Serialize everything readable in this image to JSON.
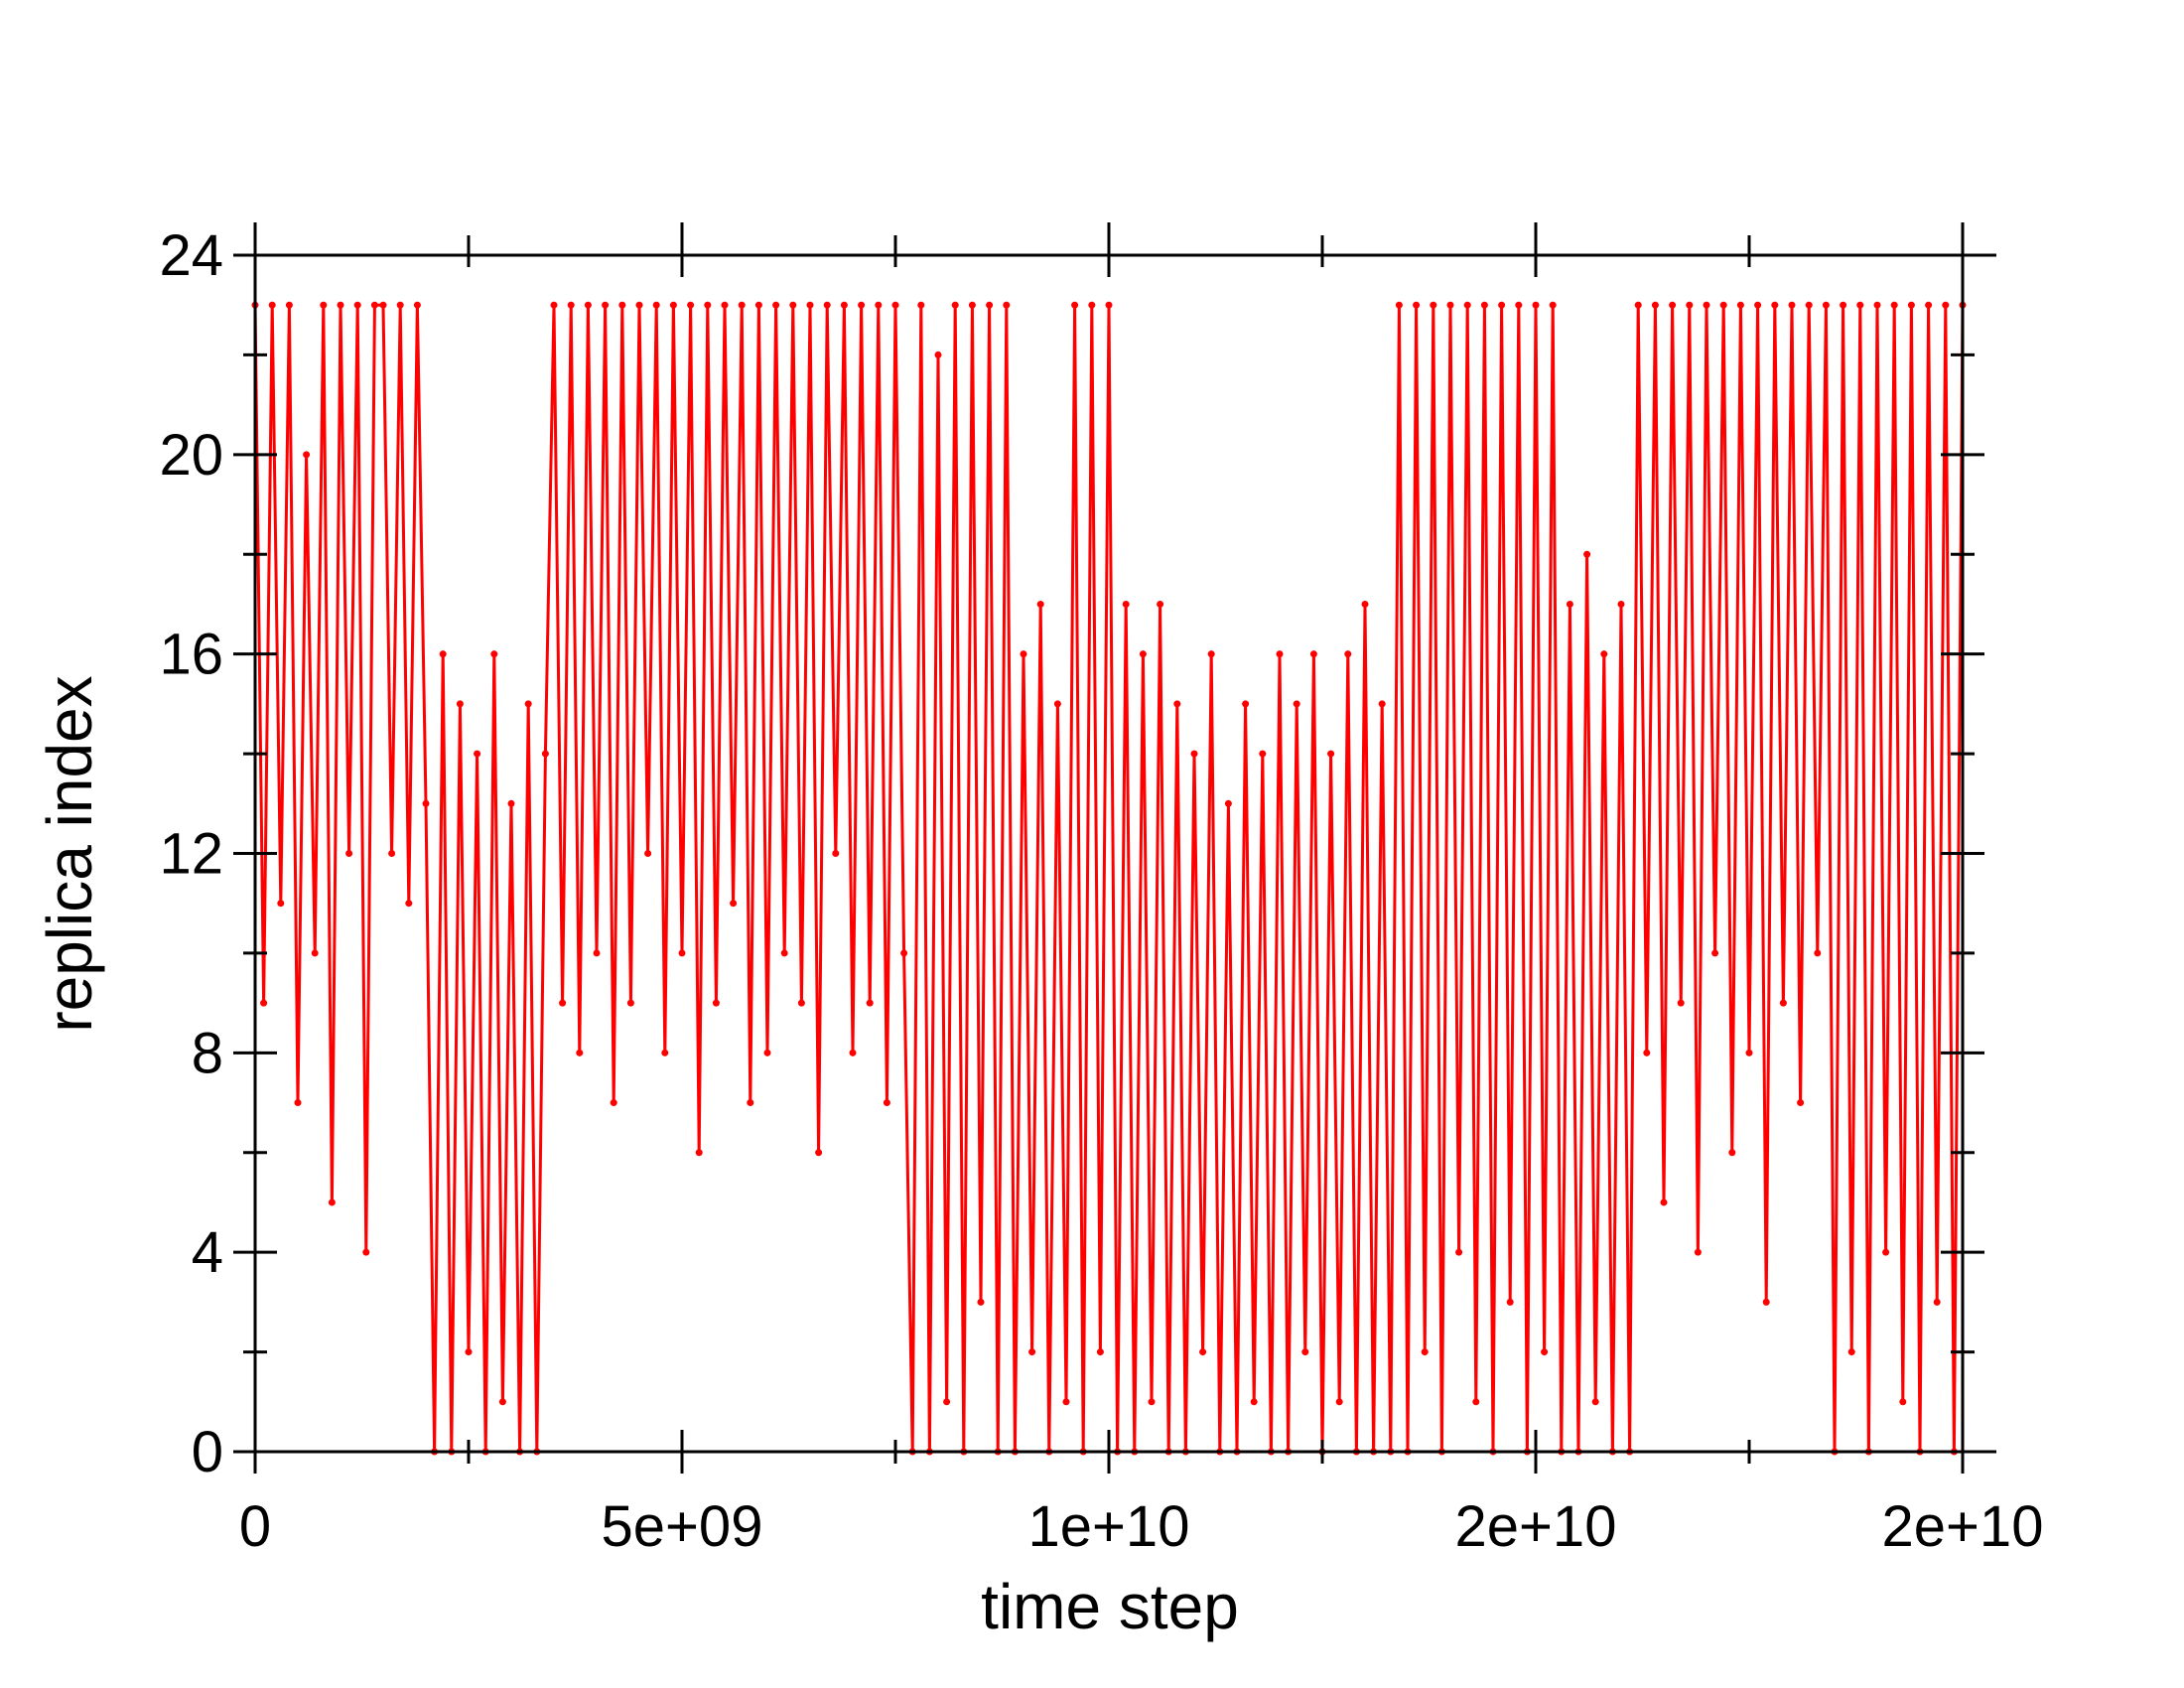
{
  "chart_data": {
    "type": "line",
    "xlabel": "time step",
    "ylabel": "replica index",
    "xlim": [
      0,
      20000000000
    ],
    "ylim": [
      0,
      24
    ],
    "xticks": [
      0,
      {
        "value": 5000000000,
        "label": "5e+09"
      },
      {
        "value": 10000000000,
        "label": "1e+10"
      },
      {
        "value": 15000000000,
        "label": "2e+10"
      },
      {
        "value": 20000000000,
        "label": "2e+10"
      }
    ],
    "yticks": [
      0,
      4,
      8,
      12,
      16,
      20,
      24
    ],
    "series": [
      {
        "color": "#ff0000",
        "x": [
          0,
          100000000.0,
          200000000.0,
          300000000.0,
          400000000.0,
          500000000.0,
          600000000.0,
          700000000.0,
          800000000.0,
          900000000.0,
          1000000000.0,
          1100000000.0,
          1200000000.0,
          1300000000.0,
          1400000000.0,
          1500000000.0,
          1600000000.0,
          1700000000.0,
          1800000000.0,
          1900000000.0,
          2000000000.0,
          2100000000.0,
          2200000000.0,
          2300000000.0,
          2400000000.0,
          2500000000.0,
          2600000000.0,
          2700000000.0,
          2800000000.0,
          2900000000.0,
          3000000000.0,
          3100000000.0,
          3200000000.0,
          3300000000.0,
          3400000000.0,
          3500000000.0,
          3600000000.0,
          3700000000.0,
          3800000000.0,
          3900000000.0,
          4000000000.0,
          4100000000.0,
          4200000000.0,
          4300000000.0,
          4400000000.0,
          4500000000.0,
          4600000000.0,
          4700000000.0,
          4800000000.0,
          4900000000.0,
          5000000000.0,
          5100000000.0,
          5200000000.0,
          5300000000.0,
          5400000000.0,
          5500000000.0,
          5600000000.0,
          5700000000.0,
          5800000000.0,
          5900000000.0,
          6000000000.0,
          6100000000.0,
          6200000000.0,
          6300000000.0,
          6400000000.0,
          6500000000.0,
          6600000000.0,
          6700000000.0,
          6800000000.0,
          6900000000.0,
          7000000000.0,
          7100000000.0,
          7200000000.0,
          7300000000.0,
          7400000000.0,
          7500000000.0,
          7600000000.0,
          7700000000.0,
          7800000000.0,
          7900000000.0,
          8000000000.0,
          8100000000.0,
          8200000000.0,
          8300000000.0,
          8400000000.0,
          8500000000.0,
          8600000000.0,
          8700000000.0,
          8800000000.0,
          8900000000.0,
          9000000000.0,
          9100000000.0,
          9200000000.0,
          9300000000.0,
          9400000000.0,
          9500000000.0,
          9600000000.0,
          9700000000.0,
          9800000000.0,
          9900000000.0,
          10000000000.0,
          10100000000.0,
          10200000000.0,
          10300000000.0,
          10400000000.0,
          10500000000.0,
          10600000000.0,
          10700000000.0,
          10800000000.0,
          10900000000.0,
          11000000000.0,
          11100000000.0,
          11200000000.0,
          11300000000.0,
          11400000000.0,
          11500000000.0,
          11600000000.0,
          11700000000.0,
          11800000000.0,
          11900000000.0,
          12000000000.0,
          12100000000.0,
          12200000000.0,
          12300000000.0,
          12400000000.0,
          12500000000.0,
          12600000000.0,
          12700000000.0,
          12800000000.0,
          12900000000.0,
          13000000000.0,
          13100000000.0,
          13200000000.0,
          13300000000.0,
          13400000000.0,
          13500000000.0,
          13600000000.0,
          13700000000.0,
          13800000000.0,
          13900000000.0,
          14000000000.0,
          14100000000.0,
          14200000000.0,
          14300000000.0,
          14400000000.0,
          14500000000.0,
          14600000000.0,
          14700000000.0,
          14800000000.0,
          14900000000.0,
          15000000000.0,
          15100000000.0,
          15200000000.0,
          15300000000.0,
          15400000000.0,
          15500000000.0,
          15600000000.0,
          15700000000.0,
          15800000000.0,
          15900000000.0,
          16000000000.0,
          16100000000.0,
          16200000000.0,
          16300000000.0,
          16400000000.0,
          16500000000.0,
          16600000000.0,
          16700000000.0,
          16800000000.0,
          16900000000.0,
          17000000000.0,
          17100000000.0,
          17200000000.0,
          17300000000.0,
          17400000000.0,
          17500000000.0,
          17600000000.0,
          17700000000.0,
          17800000000.0,
          17900000000.0,
          18000000000.0,
          18100000000.0,
          18200000000.0,
          18300000000.0,
          18400000000.0,
          18500000000.0,
          18600000000.0,
          18700000000.0,
          18800000000.0,
          18900000000.0,
          19000000000.0,
          19100000000.0,
          19200000000.0,
          19300000000.0,
          19400000000.0,
          19500000000.0,
          19600000000.0,
          19700000000.0,
          19800000000.0,
          19900000000.0,
          20000000000.0
        ],
        "values": [
          23,
          9,
          23,
          11,
          23,
          7,
          20,
          10,
          23,
          5,
          23,
          12,
          23,
          4,
          23,
          23,
          12,
          23,
          11,
          23,
          13,
          0,
          16,
          0,
          15,
          2,
          14,
          0,
          16,
          1,
          13,
          0,
          15,
          0,
          14,
          23,
          9,
          23,
          8,
          23,
          10,
          23,
          7,
          23,
          9,
          23,
          12,
          23,
          8,
          23,
          10,
          23,
          6,
          23,
          9,
          23,
          11,
          23,
          7,
          23,
          8,
          23,
          10,
          23,
          9,
          23,
          6,
          23,
          12,
          23,
          8,
          23,
          9,
          23,
          7,
          23,
          10,
          0,
          23,
          0,
          22,
          1,
          23,
          0,
          23,
          3,
          23,
          0,
          23,
          0,
          16,
          2,
          17,
          0,
          15,
          1,
          23,
          0,
          23,
          2,
          23,
          0,
          17,
          0,
          16,
          1,
          17,
          0,
          15,
          0,
          14,
          2,
          16,
          0,
          13,
          0,
          15,
          1,
          14,
          0,
          16,
          0,
          15,
          2,
          16,
          0,
          14,
          1,
          16,
          0,
          17,
          0,
          15,
          0,
          23,
          0,
          23,
          2,
          23,
          0,
          23,
          4,
          23,
          1,
          23,
          0,
          23,
          3,
          23,
          0,
          23,
          2,
          23,
          0,
          17,
          0,
          18,
          1,
          16,
          0,
          17,
          0,
          23,
          8,
          23,
          5,
          23,
          9,
          23,
          4,
          23,
          10,
          23,
          6,
          23,
          8,
          23,
          3,
          23,
          9,
          23,
          7,
          23,
          10,
          23,
          0,
          23,
          2,
          23,
          0,
          23,
          4,
          23,
          1,
          23,
          0,
          23,
          3,
          23,
          0,
          23
        ]
      }
    ]
  }
}
